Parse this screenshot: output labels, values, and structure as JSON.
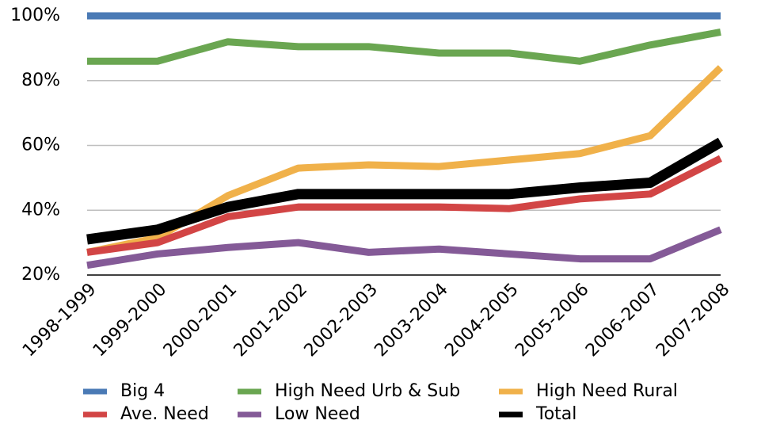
{
  "chart_data": {
    "type": "line",
    "categories": [
      "1998-1999",
      "1999-2000",
      "2000-2001",
      "2001-2002",
      "2002-2003",
      "2003-2004",
      "2004-2005",
      "2005-2006",
      "2006-2007",
      "2007-2008"
    ],
    "series": [
      {
        "name": "Big 4",
        "color": "#4a7ab5",
        "values": [
          100,
          100,
          100,
          100,
          100,
          100,
          100,
          100,
          100,
          100
        ]
      },
      {
        "name": "High Need Urb & Sub",
        "color": "#6aa651",
        "values": [
          86,
          86,
          92,
          90.5,
          90.5,
          88.5,
          88.5,
          86,
          91,
          95
        ]
      },
      {
        "name": "High Need Rural",
        "color": "#f0b14a",
        "values": [
          27,
          31.5,
          44.5,
          53,
          54,
          53.5,
          55.5,
          57.5,
          63,
          84
        ]
      },
      {
        "name": "Ave. Need",
        "color": "#d24545",
        "values": [
          27,
          30,
          38,
          41,
          41,
          41,
          40.5,
          43.5,
          45,
          56
        ]
      },
      {
        "name": "Low Need",
        "color": "#845a97",
        "values": [
          23,
          26.5,
          28.5,
          30,
          27,
          28,
          26.5,
          25,
          25,
          34
        ]
      },
      {
        "name": "Total",
        "color": "#000000",
        "values": [
          31,
          34,
          41,
          45,
          45,
          45,
          45,
          47,
          48.5,
          61
        ]
      }
    ],
    "ylim": [
      20,
      100
    ],
    "yticks": [
      {
        "value": 20,
        "label": "20%"
      },
      {
        "value": 40,
        "label": "40%"
      },
      {
        "value": 60,
        "label": "60%"
      },
      {
        "value": 80,
        "label": "80%"
      },
      {
        "value": 100,
        "label": "100%"
      }
    ],
    "grid": true
  }
}
